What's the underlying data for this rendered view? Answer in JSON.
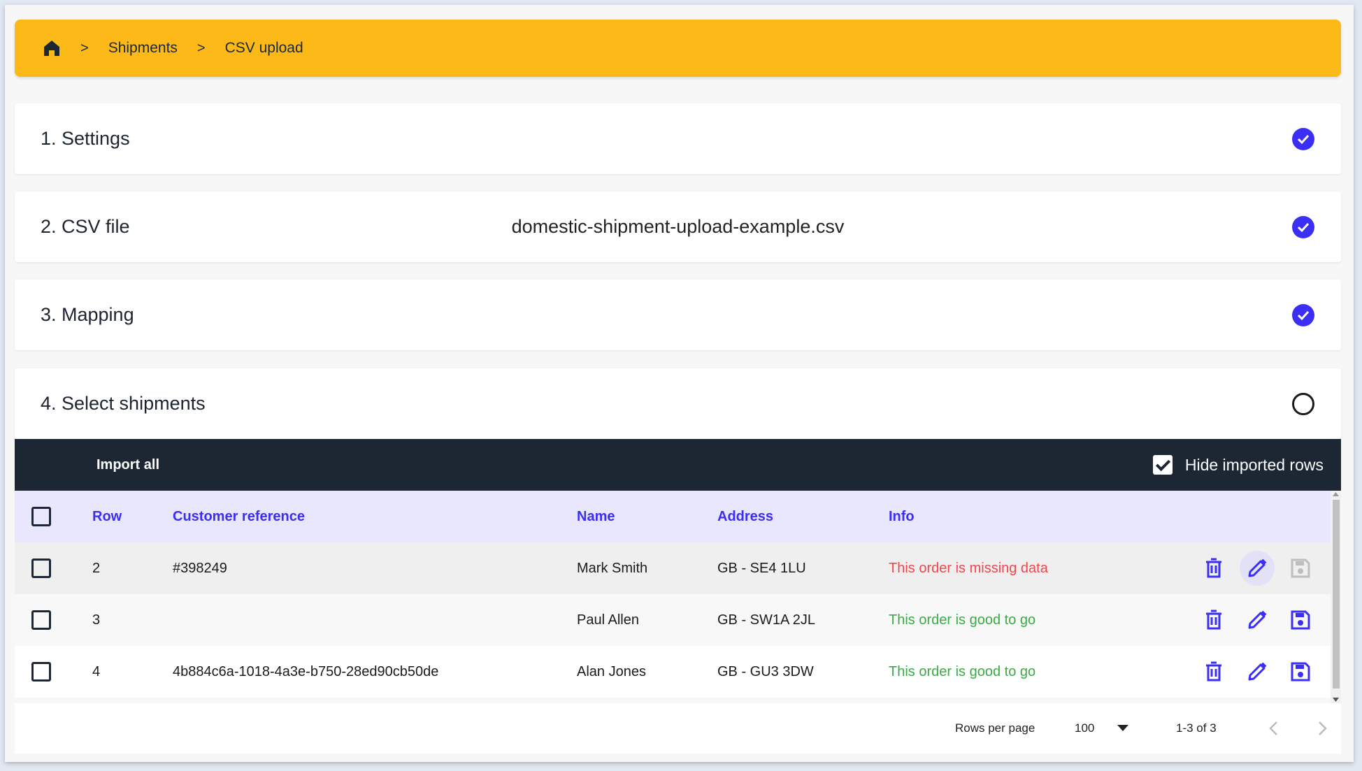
{
  "breadcrumb": {
    "home_icon": "home-icon",
    "items": [
      "Shipments",
      "CSV upload"
    ],
    "separator": ">"
  },
  "colors": {
    "accent": "#3b2ff5",
    "breadcrumb_bg": "#fdb918",
    "toolbar_bg": "#1c2733",
    "error": "#f0464e",
    "success": "#3aab44"
  },
  "steps": [
    {
      "title": "1. Settings",
      "status": "complete"
    },
    {
      "title": "2. CSV file",
      "file": "domestic-shipment-upload-example.csv",
      "status": "complete"
    },
    {
      "title": "3. Mapping",
      "status": "complete"
    },
    {
      "title": "4. Select shipments",
      "status": "pending"
    }
  ],
  "toolbar": {
    "import_all": "Import all",
    "hide_imported": "Hide imported rows",
    "hide_imported_checked": true
  },
  "table": {
    "columns": [
      "Row",
      "Customer reference",
      "Name",
      "Address",
      "Info"
    ],
    "rows": [
      {
        "row": "2",
        "ref": "#398249",
        "name": "Mark Smith",
        "address": "GB - SE4 1LU",
        "info": "This order is missing data",
        "status": "error",
        "save_enabled": false
      },
      {
        "row": "3",
        "ref": "",
        "name": "Paul Allen",
        "address": "GB - SW1A 2JL",
        "info": "This order is good to go",
        "status": "ok",
        "save_enabled": true
      },
      {
        "row": "4",
        "ref": "4b884c6a-1018-4a3e-b750-28ed90cb50de",
        "name": "Alan Jones",
        "address": "GB - GU3 3DW",
        "info": "This order is good to go",
        "status": "ok",
        "save_enabled": true
      }
    ]
  },
  "pagination": {
    "rows_per_page_label": "Rows per page",
    "rows_per_page": "100",
    "range": "1-3 of 3"
  }
}
